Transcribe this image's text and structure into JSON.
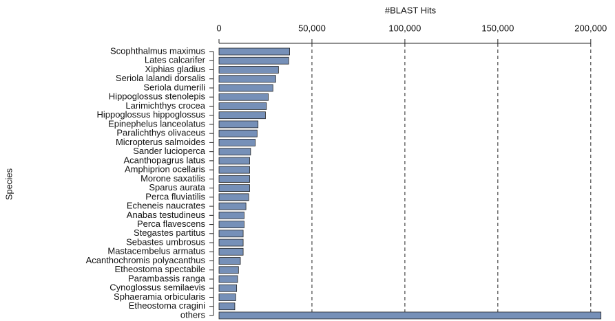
{
  "chart_data": {
    "type": "barh",
    "x_label": "#BLAST Hits",
    "y_label": "Species",
    "categories": [
      "Scophthalmus maximus",
      "Lates calcarifer",
      "Xiphias gladius",
      "Seriola lalandi dorsalis",
      "Seriola dumerili",
      "Hippoglossus stenolepis",
      "Larimichthys crocea",
      "Hippoglossus hippoglossus",
      "Epinephelus lanceolatus",
      "Paralichthys olivaceus",
      "Micropterus salmoides",
      "Sander lucioperca",
      "Acanthopagrus latus",
      "Amphiprion ocellaris",
      "Morone saxatilis",
      "Sparus aurata",
      "Perca fluviatilis",
      "Echeneis naucrates",
      "Anabas testudineus",
      "Perca flavescens",
      "Stegastes partitus",
      "Sebastes umbrosus",
      "Mastacembelus armatus",
      "Acanthochromis polyacanthus",
      "Etheostoma spectabile",
      "Parambassis ranga",
      "Cynoglossus semilaevis",
      "Sphaeramia orbicularis",
      "Etheostoma cragini",
      "others"
    ],
    "values": [
      38000,
      37500,
      32000,
      30500,
      29000,
      26500,
      25500,
      25000,
      21000,
      20500,
      19500,
      17000,
      16500,
      16500,
      16500,
      16500,
      16000,
      14500,
      13500,
      13500,
      13000,
      13000,
      13000,
      11500,
      10500,
      10000,
      9500,
      9000,
      8500,
      205500
    ],
    "color": "#7690b8",
    "xlim": [
      0,
      206000
    ],
    "xticks": [
      0,
      {
        "value": 50000,
        "label": "50,000"
      },
      {
        "value": 100000,
        "label": "100,000"
      },
      {
        "value": 150000,
        "label": "150,000"
      },
      {
        "value": 200000,
        "label": "200,000"
      }
    ],
    "grid": true
  }
}
